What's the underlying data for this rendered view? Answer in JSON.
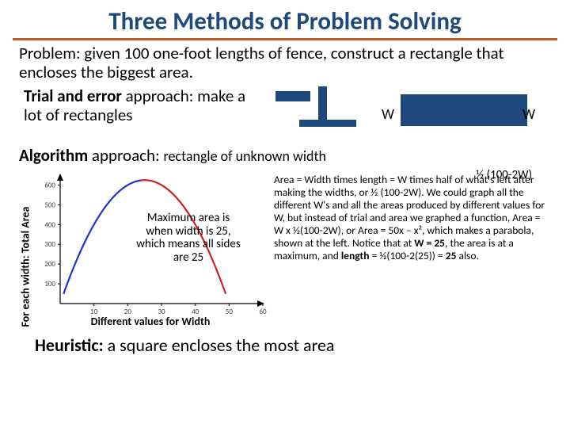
{
  "title": "Three Methods of Problem Solving",
  "problem": "Problem: given 100 one-foot lengths of fence, construct a rectangle that encloses the biggest area.",
  "trial": {
    "bold": "Trial and error",
    "rest": " approach: make a lot of rectangles",
    "w": "W",
    "rect_color": "#1f497d"
  },
  "algo": {
    "bold": "Algorithm",
    "mid": " approach: ",
    "small": "rectangle of unknown width",
    "formula": "½ (100-2W)"
  },
  "chart": {
    "type": "line",
    "ylabel": "For each width: Total Area",
    "xlabel": "Different values for Width",
    "annotation": "Maximum area is when width is 25, which means all sides are 25",
    "xlim": [
      0,
      60
    ],
    "ylim": [
      0,
      650
    ],
    "xticks": [
      10,
      20,
      30,
      40,
      50,
      60
    ],
    "yticks": [
      100,
      200,
      300,
      400,
      500,
      600
    ],
    "tick_fontsize": 9,
    "tick_color": "#444444",
    "background_color": "#ffffff",
    "axis_color": "#000000",
    "blue_color": "#2030d0",
    "red_color": "#d02020",
    "line_width": 2.2,
    "blue_segment_x": [
      1,
      24
    ],
    "red_segment_x": [
      24,
      49
    ]
  },
  "explain": "Area = Width times length = W times half of what's left after making the widths, or ½ (100-2W). We could graph all the different W's and all the areas produced by different values for W, but instead of trial and area we graphed a function, Area = W x ½(100-2W), or Area = 50x – x², which makes a parabola, shown at the left. Notice that at <b>W = 25</b>, the area is at a maximum, and <b>length</b> = ½(100-2(25)) = <b>25</b> also.",
  "heuristic": {
    "bold": "Heuristic:",
    "rest": " a square encloses the most area"
  }
}
